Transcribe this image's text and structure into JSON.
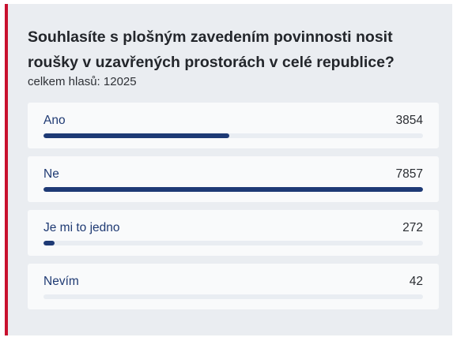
{
  "poll": {
    "question": "Souhlasíte s plošným zavedením povinnosti nosit roušky v uzavřených prostorách v celé republice?",
    "total_label": "celkem hlasů:",
    "total_votes": "12025",
    "bar_color": "#1e3a75",
    "accent_color": "#c8102e",
    "options": [
      {
        "label": "Ano",
        "votes": "3854",
        "bar_fraction": 0.49
      },
      {
        "label": "Ne",
        "votes": "7857",
        "bar_fraction": 1.0
      },
      {
        "label": "Je mi to jedno",
        "votes": "272",
        "bar_fraction": 0.03
      },
      {
        "label": "Nevím",
        "votes": "42",
        "bar_fraction": 0.0
      }
    ]
  }
}
